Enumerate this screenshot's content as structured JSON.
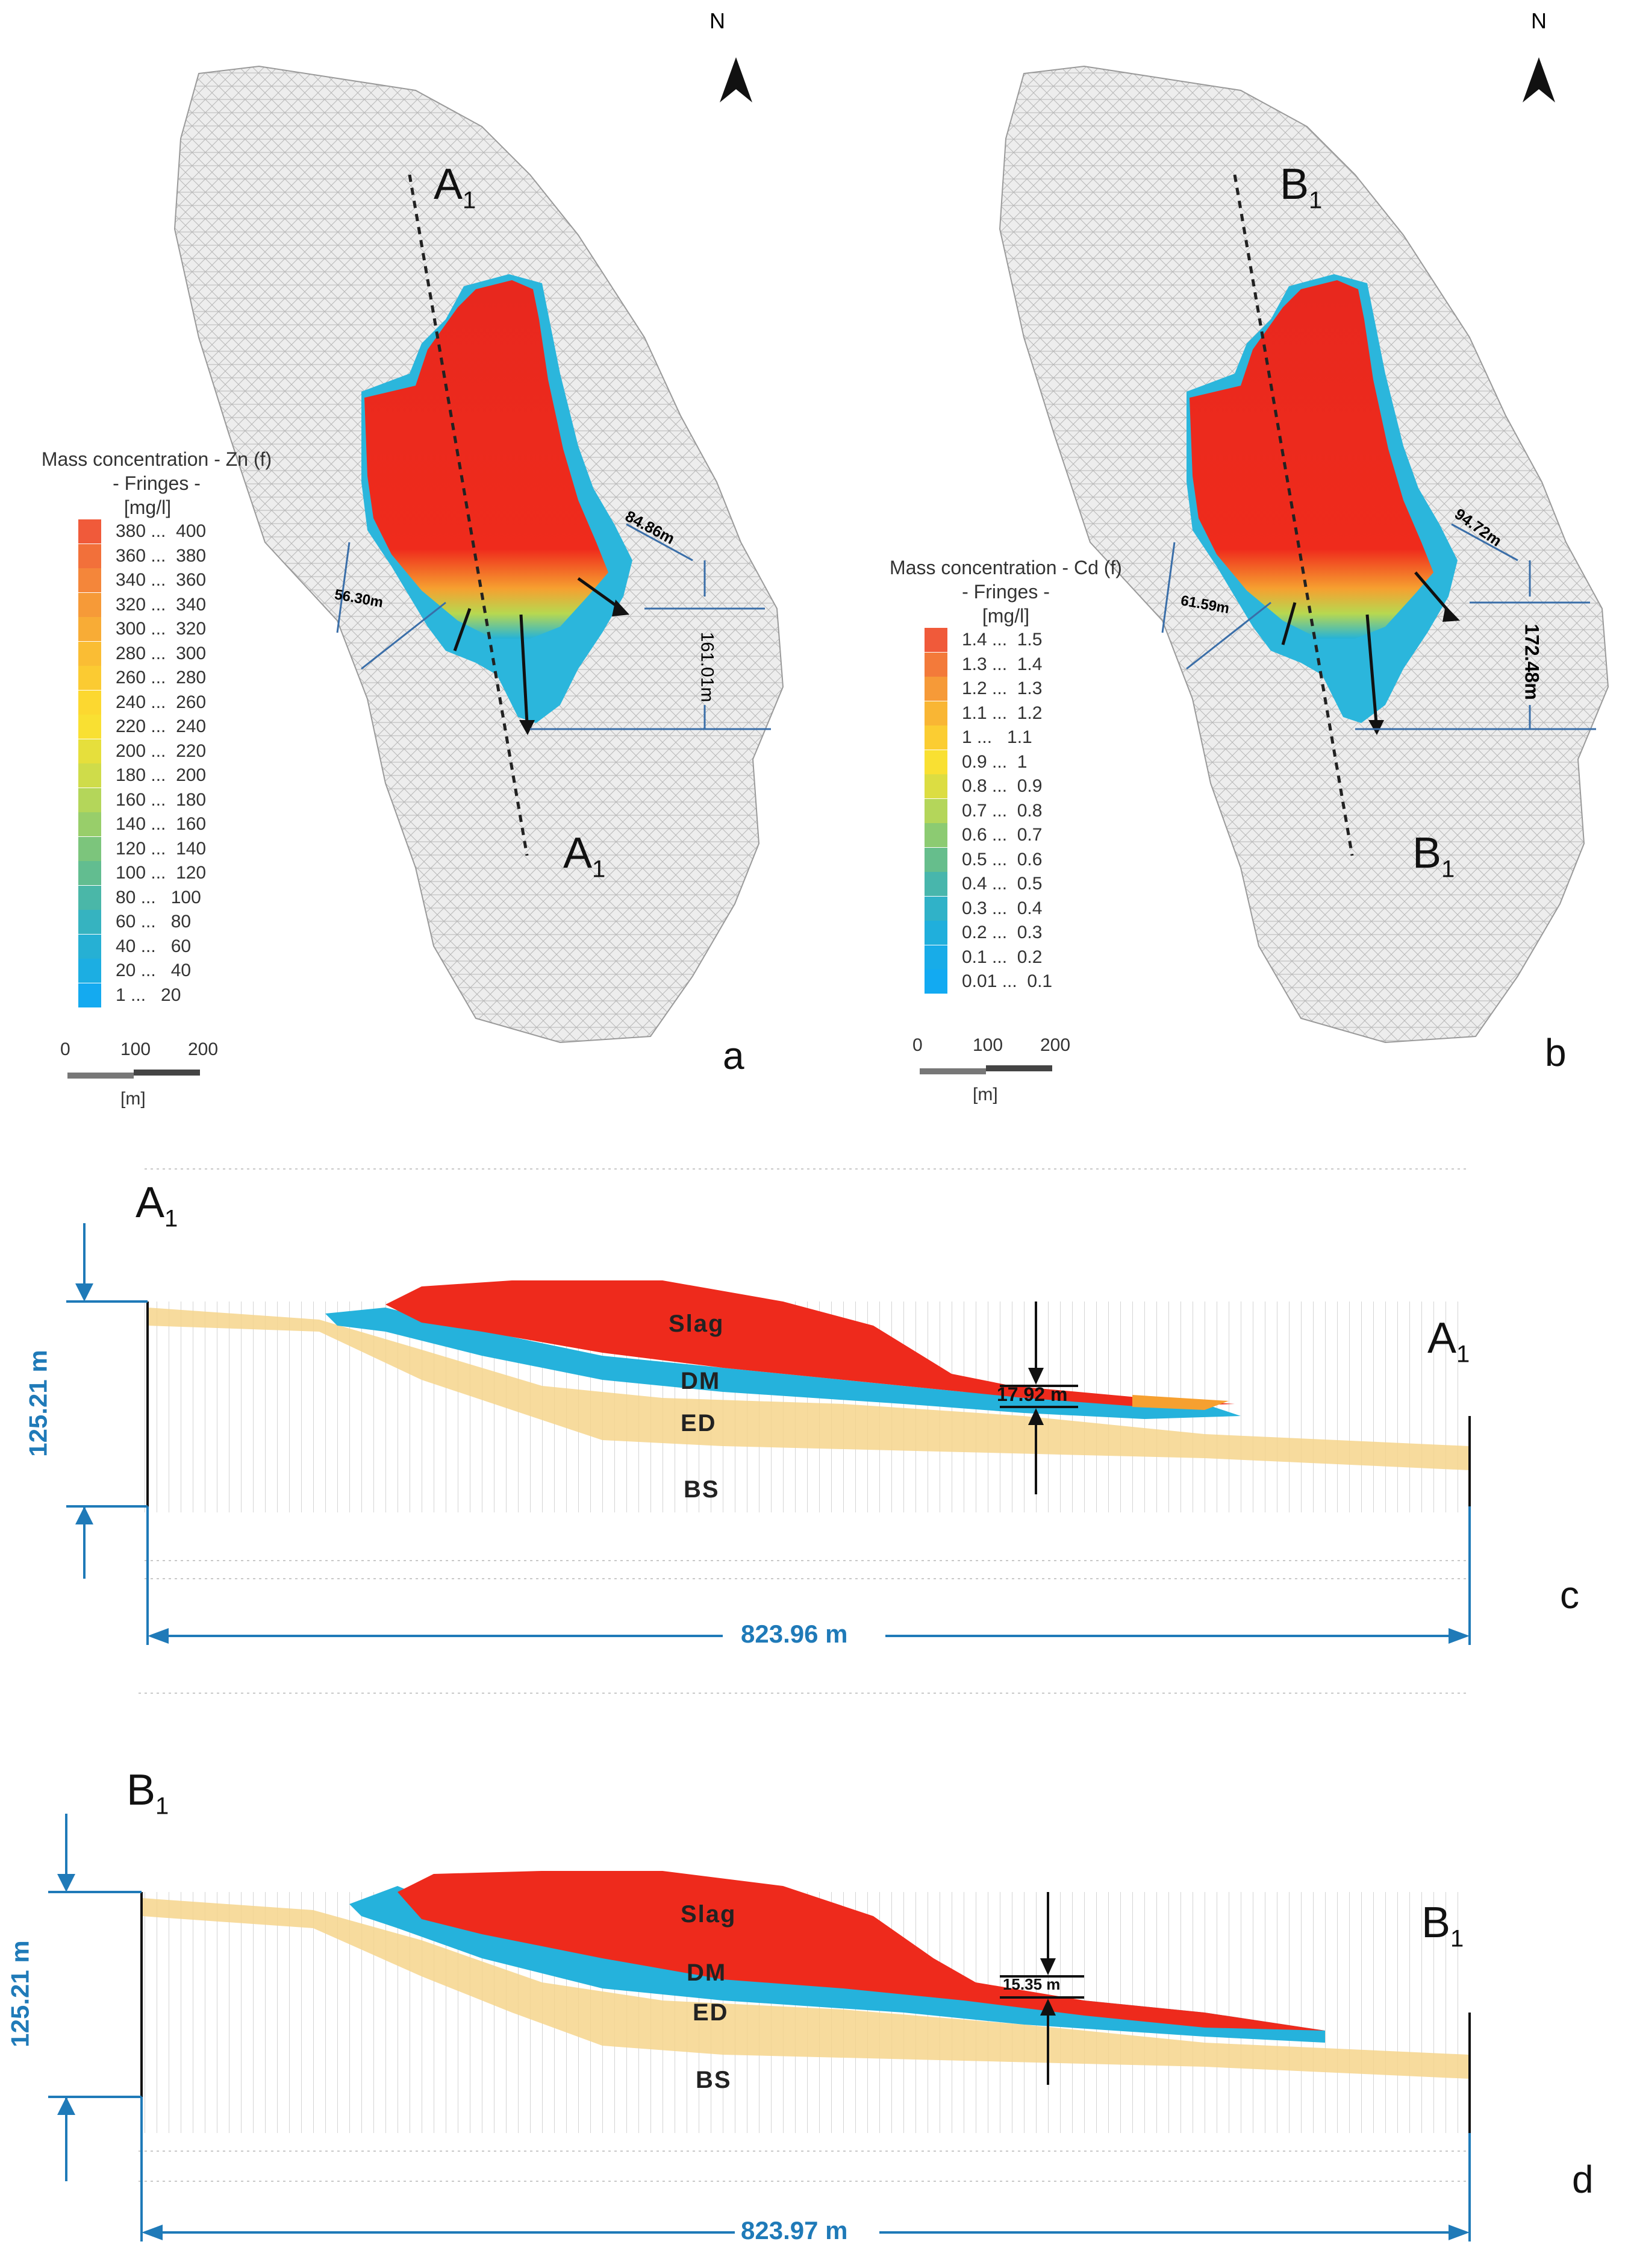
{
  "north_label": "N",
  "panel_a": {
    "letter": "a",
    "section_start": "A",
    "section_end": "A",
    "section_sub": "1",
    "dims": [
      "84.86m",
      "56.30m",
      "161.01m"
    ],
    "legend": {
      "title": "Mass concentration - Zn (f)",
      "subtitle": "- Fringes -",
      "unit": "[mg/l]",
      "entries": [
        {
          "range": "380 ...  400",
          "color": "#f05a3a"
        },
        {
          "range": "360 ...  380",
          "color": "#f2703a"
        },
        {
          "range": "340 ...  360",
          "color": "#f4863a"
        },
        {
          "range": "320 ...  340",
          "color": "#f69a38"
        },
        {
          "range": "300 ...  320",
          "color": "#f8ac36"
        },
        {
          "range": "280 ...  300",
          "color": "#fabd34"
        },
        {
          "range": "260 ...  280",
          "color": "#fbcb32"
        },
        {
          "range": "240 ...  260",
          "color": "#fcd830"
        },
        {
          "range": "220 ...  240",
          "color": "#f9e032"
        },
        {
          "range": "200 ...  220",
          "color": "#e6df3c"
        },
        {
          "range": "180 ...  200",
          "color": "#cfdc4a"
        },
        {
          "range": "160 ...  180",
          "color": "#b4d65a"
        },
        {
          "range": "140 ...  160",
          "color": "#98ce6a"
        },
        {
          "range": "120 ...  140",
          "color": "#7cc57c"
        },
        {
          "range": "100 ...  120",
          "color": "#62bd90"
        },
        {
          "range": "80 ...   100",
          "color": "#4ab7a8"
        },
        {
          "range": "60 ...   80",
          "color": "#36b3c0"
        },
        {
          "range": "40 ...   60",
          "color": "#26b0d4"
        },
        {
          "range": "20 ...   40",
          "color": "#1caee2"
        },
        {
          "range": "1 ...   20",
          "color": "#14aaf0"
        }
      ]
    },
    "scale": {
      "ticks": [
        "0",
        "100",
        "200"
      ],
      "unit": "[m]"
    }
  },
  "panel_b": {
    "letter": "b",
    "section_start": "B",
    "section_end": "B",
    "section_sub": "1",
    "dims": [
      "94.72m",
      "61.59m",
      "172.48m"
    ],
    "legend": {
      "title": "Mass concentration - Cd (f)",
      "subtitle": "- Fringes -",
      "unit": "[mg/l]",
      "entries": [
        {
          "range": "1.4 ...  1.5",
          "color": "#f05a3a"
        },
        {
          "range": "1.3 ...  1.4",
          "color": "#f37a3a"
        },
        {
          "range": "1.2 ...  1.3",
          "color": "#f69a38"
        },
        {
          "range": "1.1 ...  1.2",
          "color": "#f9b634"
        },
        {
          "range": "1 ...   1.1",
          "color": "#fbcd32"
        },
        {
          "range": "0.9 ...  1",
          "color": "#f9e032"
        },
        {
          "range": "0.8 ...  0.9",
          "color": "#dcdd42"
        },
        {
          "range": "0.7 ...  0.8",
          "color": "#b4d65a"
        },
        {
          "range": "0.6 ...  0.7",
          "color": "#8ccb72"
        },
        {
          "range": "0.5 ...  0.6",
          "color": "#66be8c"
        },
        {
          "range": "0.4 ...  0.5",
          "color": "#48b6ac"
        },
        {
          "range": "0.3 ...  0.4",
          "color": "#30b2c8"
        },
        {
          "range": "0.2 ...  0.3",
          "color": "#20afdc"
        },
        {
          "range": "0.1 ...  0.2",
          "color": "#18ace8"
        },
        {
          "range": "0.01 ...  0.1",
          "color": "#12aaf2"
        }
      ]
    },
    "scale": {
      "ticks": [
        "0",
        "100",
        "200"
      ],
      "unit": "[m]"
    }
  },
  "panel_c": {
    "letter": "c",
    "start": "A",
    "end": "A",
    "sub": "1",
    "height_dim": "125.21 m",
    "length_dim": "823.96 m",
    "thickness": "17.92 m",
    "layers": {
      "slag": "Slag",
      "dm": "DM",
      "ed": "ED",
      "bs": "BS"
    }
  },
  "panel_d": {
    "letter": "d",
    "start": "B",
    "end": "B",
    "sub": "1",
    "height_dim": "125.21 m",
    "length_dim": "823.97 m",
    "thickness": "15.35 m",
    "layers": {
      "slag": "Slag",
      "dm": "DM",
      "ed": "ED",
      "bs": "BS"
    }
  }
}
